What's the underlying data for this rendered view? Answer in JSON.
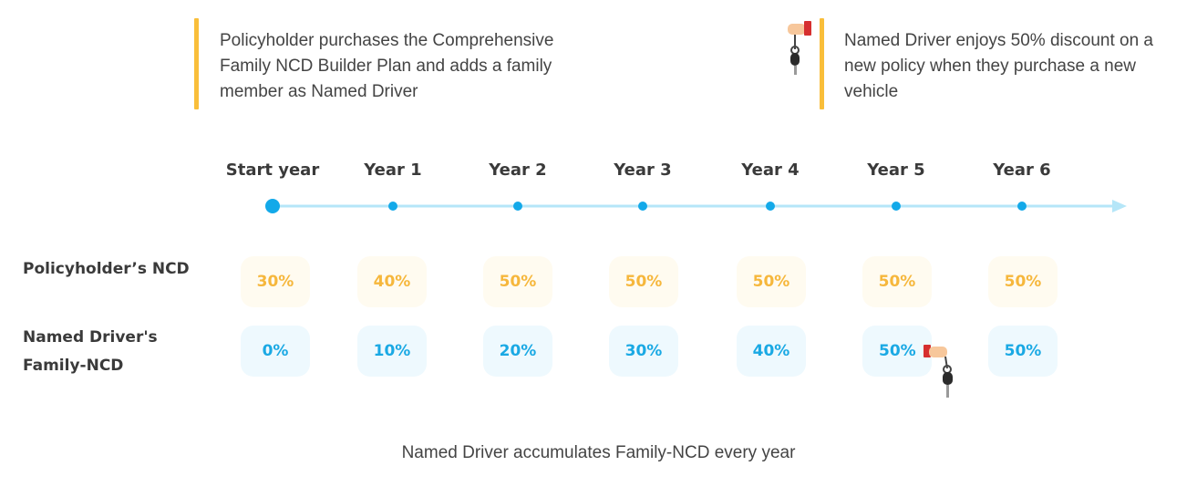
{
  "colors": {
    "accent_orange": "#F9BE3A",
    "policyholder_text": "#F6B73C",
    "policyholder_bg": "#FFFBF0",
    "driver_text": "#1AA9E4",
    "driver_bg": "#EEF9FE",
    "timeline_line": "#B5E6F8",
    "timeline_dot": "#13A9E9"
  },
  "notes": {
    "left": {
      "lines": [
        "Policyholder purchases the Comprehensive",
        "Family NCD Builder Plan and adds a family",
        "member as Named Driver"
      ]
    },
    "right": {
      "icon": "hand-holding-car-key-icon",
      "lines": [
        "Named Driver enjoys 50% discount on a",
        "new policy when they purchase a new",
        "vehicle"
      ]
    }
  },
  "timeline": {
    "years": [
      "Start year",
      "Year 1",
      "Year 2",
      "Year 3",
      "Year 4",
      "Year 5",
      "Year 6"
    ]
  },
  "rows": {
    "policyholder": {
      "label_lines": [
        "Policyholder’s NCD"
      ],
      "values": [
        "30%",
        "40%",
        "50%",
        "50%",
        "50%",
        "50%",
        "50%"
      ]
    },
    "named_driver": {
      "label_lines": [
        "Named Driver's",
        "Family-NCD"
      ],
      "values": [
        "0%",
        "10%",
        "20%",
        "30%",
        "40%",
        "50%",
        "50%"
      ],
      "key_icon_at": "Year 5"
    }
  },
  "caption": "Named Driver accumulates Family-NCD every year"
}
